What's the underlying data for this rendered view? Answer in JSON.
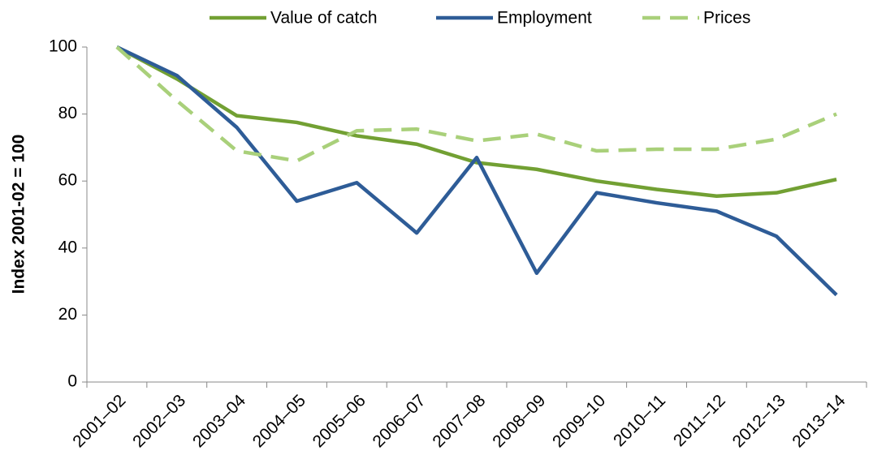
{
  "chart_data": {
    "type": "line",
    "y_label": "Index 2001-02 = 100",
    "categories": [
      "2001–02",
      "2002–03",
      "2003–04",
      "2004–05",
      "2005–06",
      "2006–07",
      "2007–08",
      "2008–09",
      "2009–10",
      "2010–11",
      "2011–12",
      "2012–13",
      "2013–14"
    ],
    "series": [
      {
        "name": "Value of catch",
        "color": "#72a033",
        "dashed": false,
        "values": [
          100,
          90.5,
          79.5,
          77.5,
          73.5,
          71,
          65.5,
          63.5,
          60,
          57.5,
          55.5,
          56.5,
          60.5
        ]
      },
      {
        "name": "Employment",
        "color": "#2e5c97",
        "dashed": false,
        "values": [
          100,
          91.5,
          76,
          54,
          59.5,
          44.5,
          67,
          32.5,
          56.5,
          53.5,
          51,
          43.5,
          26
        ]
      },
      {
        "name": "Prices",
        "color": "#a9d07a",
        "dashed": true,
        "values": [
          100,
          84,
          69,
          66,
          75,
          75.5,
          72,
          74,
          69,
          69.5,
          69.5,
          72.5,
          80
        ]
      }
    ],
    "ylim": [
      0,
      100
    ],
    "yticks": [
      0,
      20,
      40,
      60,
      80,
      100
    ],
    "grid": false,
    "legend": "top"
  }
}
